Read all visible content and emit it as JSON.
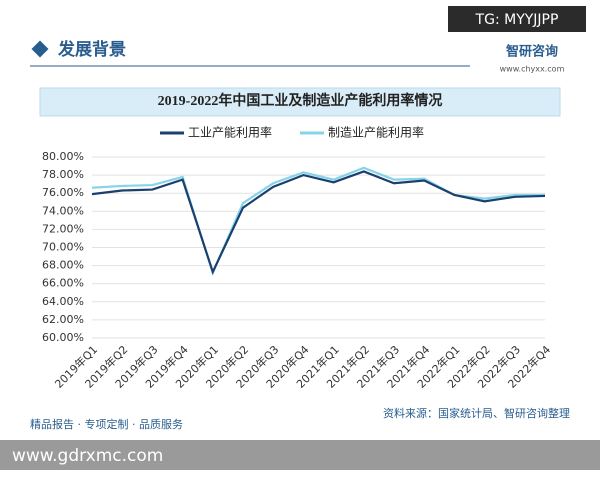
{
  "page": {
    "section_title": "发展背景",
    "tag": "TG: MYYJJPP",
    "brand": "智研咨询",
    "website": "www.chyxx.com",
    "slogan": "精品报告 · 专项定制 · 品质服务",
    "source": "资料来源：国家统计局、智研咨询整理",
    "bottom_url": "www.gdrxmc.com"
  },
  "chart_data": {
    "type": "line",
    "title": "2019-2022年中国工业及制造业产能利用率情况",
    "categories": [
      "2019年Q1",
      "2019年Q2",
      "2019年Q3",
      "2019年Q4",
      "2020年Q1",
      "2020年Q2",
      "2020年Q3",
      "2020年Q4",
      "2021年Q1",
      "2021年Q2",
      "2021年Q3",
      "2021年Q4",
      "2022年Q1",
      "2022年Q2",
      "2022年Q3",
      "2022年Q4"
    ],
    "series": [
      {
        "name": "工业产能利用率",
        "color": "#1b3f6e",
        "values": [
          75.9,
          76.3,
          76.4,
          77.5,
          67.3,
          74.4,
          76.7,
          78.0,
          77.2,
          78.4,
          77.1,
          77.4,
          75.8,
          75.1,
          75.6,
          75.7
        ]
      },
      {
        "name": "制造业产能利用率",
        "color": "#86d4e8",
        "values": [
          76.6,
          76.8,
          76.9,
          77.8,
          67.2,
          74.9,
          77.1,
          78.3,
          77.5,
          78.8,
          77.5,
          77.6,
          75.8,
          75.4,
          75.8,
          75.8
        ]
      }
    ],
    "ylim": [
      60,
      80
    ],
    "yticks": [
      {
        "value": 60,
        "label": "60.00%"
      },
      {
        "value": 62,
        "label": "62.00%"
      },
      {
        "value": 64,
        "label": "64.00%"
      },
      {
        "value": 66,
        "label": "66.00%"
      },
      {
        "value": 68,
        "label": "68.00%"
      },
      {
        "value": 70,
        "label": "70.00%"
      },
      {
        "value": 72,
        "label": "72.00%"
      },
      {
        "value": 74,
        "label": "74.00%"
      },
      {
        "value": 76,
        "label": "76.00%"
      },
      {
        "value": 78,
        "label": "78.00%"
      },
      {
        "value": 80,
        "label": "80.00%"
      }
    ],
    "grid": true,
    "legend": "top"
  }
}
